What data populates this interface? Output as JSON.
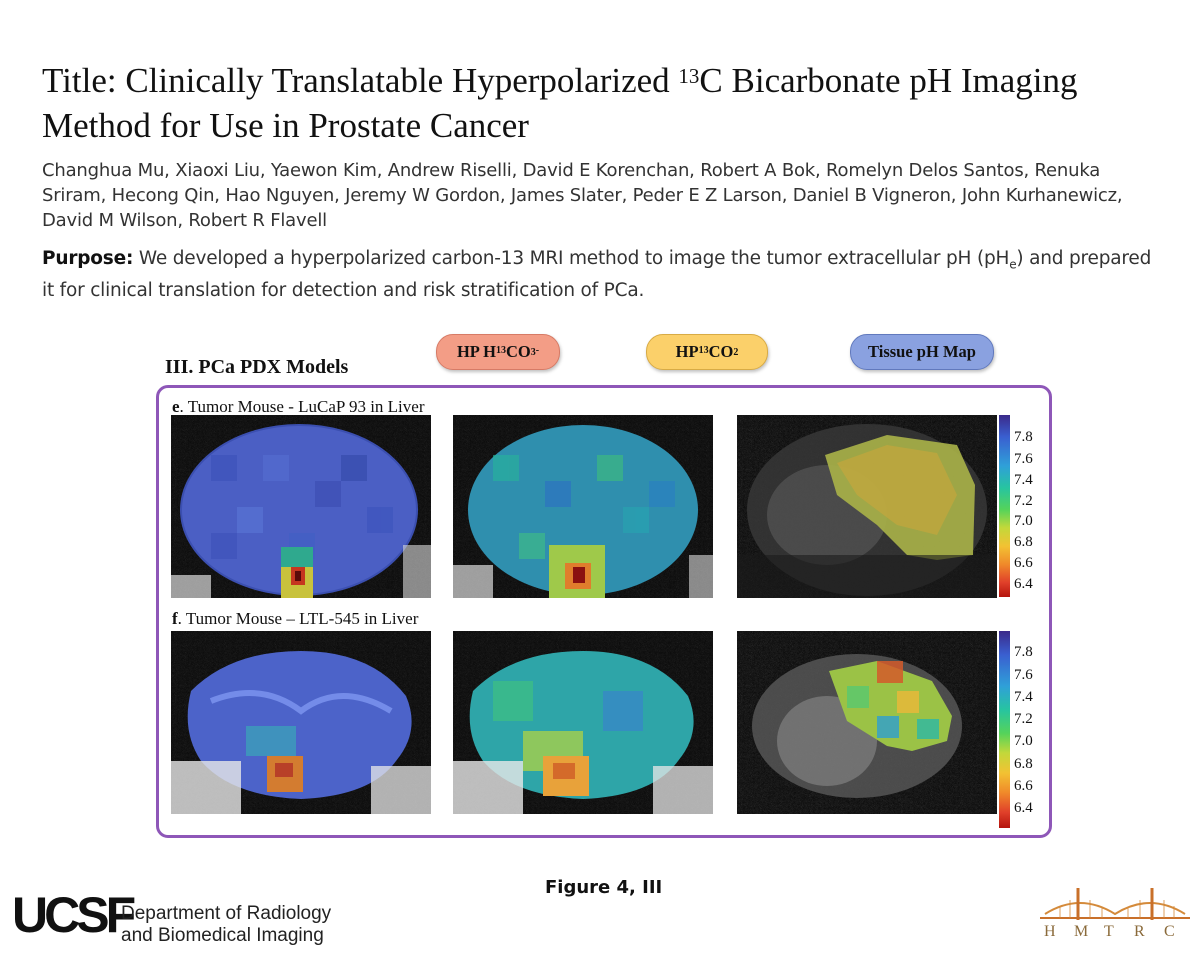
{
  "header": {
    "title_part1": "Title: Clinically Translatable Hyperpolarized ",
    "title_sup": "13",
    "title_part2": "C Bicarbonate pH Imaging Method for Use in Prostate Cancer",
    "authors": "Changhua Mu, Xiaoxi Liu, Yaewon Kim, Andrew Riselli, David E Korenchan, Robert A Bok, Romelyn Delos Santos, Renuka Sriram, Hecong Qin, Hao Nguyen, Jeremy W Gordon, James Slater, Peder E Z Larson, Daniel B Vigneron, John Kurhanewicz, David M Wilson, Robert R Flavell",
    "purpose_label": "Purpose:",
    "purpose_text_1": " We developed a hyperpolarized carbon-13 MRI method to image the tumor extracellular pH (pH",
    "purpose_sub": "e",
    "purpose_text_2": ") and prepared it for clinical translation for detection and risk stratification of PCa."
  },
  "figure": {
    "section_heading": "III. PCa PDX Models",
    "column_pills": {
      "bicarbonate_prefix": "HP H",
      "bicarbonate_sup": "13",
      "bicarbonate_mid": "CO",
      "bicarbonate_sub": "3",
      "bicarbonate_sup2": "-",
      "co2_prefix": "HP ",
      "co2_sup": "13",
      "co2_mid": "CO",
      "co2_sub": "2",
      "ph_map": "Tissue pH Map"
    },
    "rows": [
      {
        "letter": "e",
        "label": ". Tumor Mouse - LuCaP 93 in Liver"
      },
      {
        "letter": "f",
        "label": ". Tumor Mouse – LTL-545 in Liver"
      }
    ],
    "colorbar_ticks": [
      "7.8",
      "7.6",
      "7.4",
      "7.2",
      "7.0",
      "6.8",
      "6.6",
      "6.4"
    ],
    "colors": {
      "frame": "#8e57b8",
      "pill_bicarbonate": "#f39d86",
      "pill_co2": "#fbd06a",
      "pill_ph": "#8aa1e0"
    },
    "caption": "Figure 4, III"
  },
  "footer": {
    "logo_text": "UCSF",
    "dept_line1": "Department of Radiology",
    "dept_line2": "and Biomedical Imaging",
    "hmtrc_letters": [
      "H",
      "M",
      "T",
      "R",
      "C"
    ]
  }
}
